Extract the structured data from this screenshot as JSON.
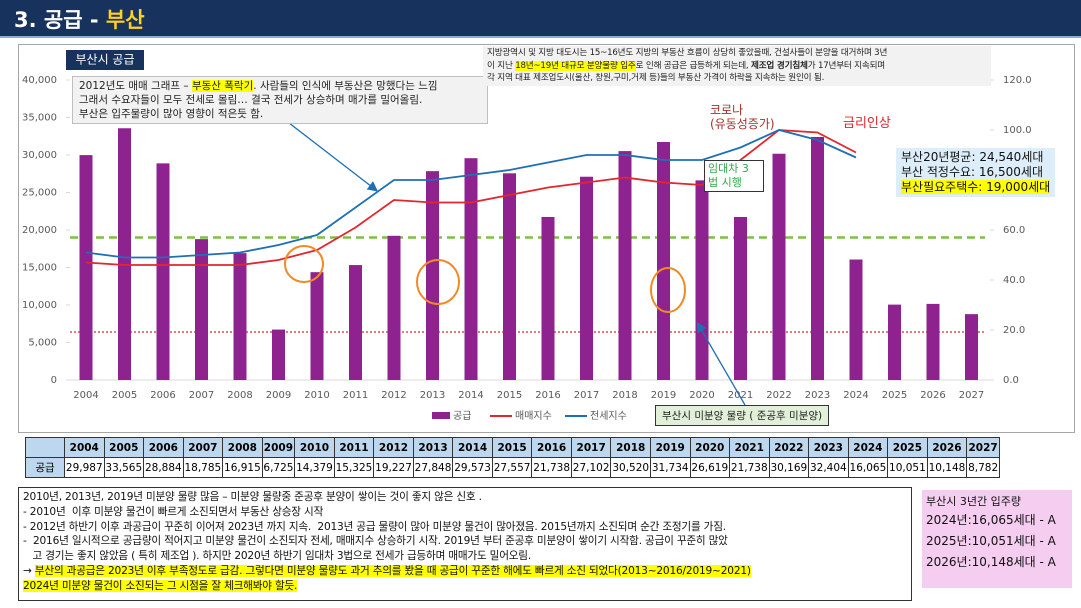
{
  "header": {
    "number": "3. 공급 - ",
    "region": "부산"
  },
  "chart_data": {
    "type": "bar",
    "title": "부산시 공급",
    "categories": [
      "2004",
      "2005",
      "2006",
      "2007",
      "2008",
      "2009",
      "2010",
      "2011",
      "2012",
      "2013",
      "2014",
      "2015",
      "2016",
      "2017",
      "2018",
      "2019",
      "2020",
      "2021",
      "2022",
      "2023",
      "2024",
      "2025",
      "2026",
      "2027"
    ],
    "series": [
      {
        "name": "공급",
        "type": "bar",
        "color": "#8e2390",
        "values": [
          29987,
          33565,
          28884,
          18785,
          16915,
          6725,
          14379,
          15325,
          19227,
          27848,
          29573,
          27557,
          21738,
          27102,
          30520,
          31734,
          26619,
          21738,
          30169,
          32404,
          16065,
          10051,
          10148,
          8782
        ],
        "value_labels": [
          "29,987",
          "33,565",
          "28,884",
          "18,785",
          "16,915",
          "6,725",
          "14,379",
          "15,325",
          "19,227",
          "27,848",
          "29,573",
          "27,557",
          "21,738",
          "27,102",
          "30,520",
          "31,734",
          "26,619",
          "21,738",
          "30,169",
          "32,404",
          "16,065",
          "10,051",
          "10,148",
          "8,782"
        ]
      },
      {
        "name": "매매지수",
        "type": "line",
        "axis": "y2",
        "color": "#e3262b",
        "values": [
          47,
          46,
          46,
          46,
          46,
          48,
          52,
          61,
          72,
          71,
          71,
          74,
          77,
          79,
          81,
          79,
          78,
          88,
          100,
          99,
          91,
          null,
          null,
          null
        ]
      },
      {
        "name": "전세지수",
        "type": "line",
        "axis": "y2",
        "color": "#1f6fb5",
        "values": [
          51,
          49,
          49,
          50,
          51,
          54,
          58,
          69,
          80,
          80,
          82,
          84,
          87,
          90,
          90,
          88,
          88,
          93,
          100,
          96,
          89,
          null,
          null,
          null
        ]
      }
    ],
    "ylim": [
      0,
      40000
    ],
    "yticks": [
      0,
      {
        "value": 5000,
        "label": "5,000"
      },
      {
        "value": 10000,
        "label": "10,000"
      },
      {
        "value": 15000,
        "label": "15,000"
      },
      {
        "value": 20000,
        "label": "20,000"
      },
      {
        "value": 25000,
        "label": "25,000"
      },
      {
        "value": 30000,
        "label": "30,000"
      },
      {
        "value": 35000,
        "label": "35,000"
      },
      {
        "value": 40000,
        "label": "40,000"
      }
    ],
    "y2lim": [
      0,
      120
    ],
    "y2ticks": [
      {
        "value": 0,
        "label": "0.0"
      },
      {
        "value": 20,
        "label": "20.0"
      },
      {
        "value": 40,
        "label": "40.0"
      },
      {
        "value": 60,
        "label": "60.0"
      },
      {
        "value": 80,
        "label": "80.0"
      },
      {
        "value": 100,
        "label": "100.0"
      },
      {
        "value": 120,
        "label": "120.0"
      }
    ],
    "reference_lines": [
      {
        "value": 19000,
        "color": "#7cc142",
        "style": "dashed"
      },
      {
        "value": 6400,
        "color": "#e3262b",
        "style": "dotted"
      }
    ],
    "legend_note": "부산시 미분양 물량 ( 준공후 미분양)",
    "annotations": {
      "crash_note": [
        [
          {
            "text": "2012년도 매매 그래프 – "
          },
          {
            "text": "부동산 폭락기",
            "highlight": true
          },
          {
            "text": ". 사람들의 인식에 부동산은 망했다는 느낌"
          }
        ],
        [
          {
            "text": "그래서 수요자들이 모두 전세로 몰림… 결국 전세가 상승하며 매가를 밀어올림."
          }
        ],
        [
          {
            "text": "부산은 입주물량이 많아 영향이 적은듯 함."
          }
        ]
      ],
      "supply_note": [
        [
          {
            "text": "지방광역시 및 지방 대도시는 15~16년도 지방의 부동산 흐름이 상당히 좋았을때, 건설사들이 분양을 대거하며 3년"
          }
        ],
        [
          {
            "text": "이 지난 "
          },
          {
            "text": "18년~19년 대규모 분양물량 입주",
            "highlight": true
          },
          {
            "text": "로 인해 공급은 급등하게 되는데, "
          },
          {
            "text": "제조업 경기침체",
            "bold": true
          },
          {
            "text": "가 17년부터 지속되며"
          }
        ],
        [
          {
            "text": "각 지역 대표 제조업도시(울산, 창원,구미,거제 등)들의 부동산 가격이 하락을 지속하는 원인이 됨."
          }
        ]
      ],
      "covid": [
        "코로나",
        "(유동성증가)"
      ],
      "rate_hike": "금리인상",
      "lease_law": [
        "임대차 3",
        "법 시행"
      ]
    },
    "callout": [
      [
        {
          "text": "부산20년평균: 24,540세대"
        }
      ],
      [
        {
          "text": "부산 적정수요: 16,500세대"
        }
      ],
      [
        {
          "text": "부산필요주택수: 19,000세대",
          "highlight": true
        }
      ]
    ]
  },
  "table": {
    "row_label": "공급"
  },
  "notes": [
    [
      {
        "text": "2010년, 2013년, 2019년 미분양 물량 많음 – 미분양 물량중 준공후 분양이 쌓이는 것이 좋지 않은 신호 ."
      }
    ],
    [
      {
        "text": "- 2010년  이후 미분양 물건이 빠르게 소진되면서 부동산 상승장 시작"
      }
    ],
    [
      {
        "text": "- 2012년 하반기 이후 과공급이 꾸준히 이어져 2023년 까지 지속.  2013년 공급 물량이 많아 미분양 물건이 많아졌음. 2015년까지 소진되며 순간 조정기를 가짐."
      }
    ],
    [
      {
        "text": "-  2016년 일시적으로 공급량이 적어지고 미분양 물건이 소진되자 전세, 매매지수 상승하기 시작. 2019년 부터 준공후 미분양이 쌓이기 시작함. 공급이 꾸준히 많았"
      }
    ],
    [
      {
        "text": "   고 경기는 좋지 않았음 ( 특히 제조업 ). 하지만 2020년 하반기 임대차 3법으로 전세가 급등하며 매매가도 밀어오림."
      }
    ],
    [
      {
        "text": "→ "
      },
      {
        "text": "부산의 과공급은 2023년 이후 부족정도로 급감. 그렇다면 미분양 물량도 과거 추의를 봤을 때 공급이 꾸준한 해에도 빠르게 소진 되었다(2013~2016/2019~2021)",
        "highlight": true
      }
    ],
    [
      {
        "text": "2024년 미분양 물건이 소진되는 그 시점을 잘 체크해봐야 할듯.",
        "highlight": true
      }
    ]
  ],
  "side_box": {
    "title": "부산시 3년간 입주량",
    "lines": [
      "2024년:16,065세대 - A",
      "2025년:10,051세대 - A",
      "2026년:10,148세대 - A"
    ]
  }
}
